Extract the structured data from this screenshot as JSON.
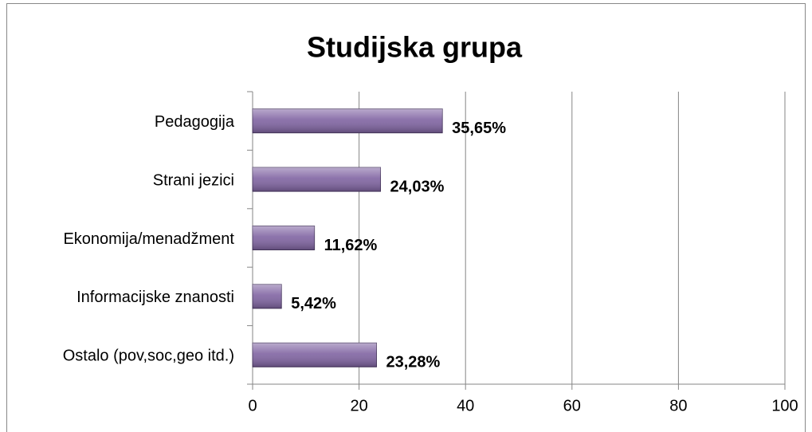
{
  "chart_data": {
    "type": "bar",
    "orientation": "horizontal",
    "title": "Studijska grupa",
    "categories": [
      "Pedagogija",
      "Strani jezici",
      "Ekonomija/menadžment",
      "Informacijske znanosti",
      "Ostalo (pov,soc,geo itd.)"
    ],
    "values": [
      35.65,
      24.03,
      11.62,
      5.42,
      23.28
    ],
    "value_labels": [
      "35,65%",
      "24,03%",
      "11,62%",
      "5,42%",
      "23,28%"
    ],
    "color": "#8064a2",
    "xlim": [
      0,
      100
    ],
    "xticks": [
      0,
      20,
      40,
      60,
      80,
      100
    ],
    "grid": true
  }
}
